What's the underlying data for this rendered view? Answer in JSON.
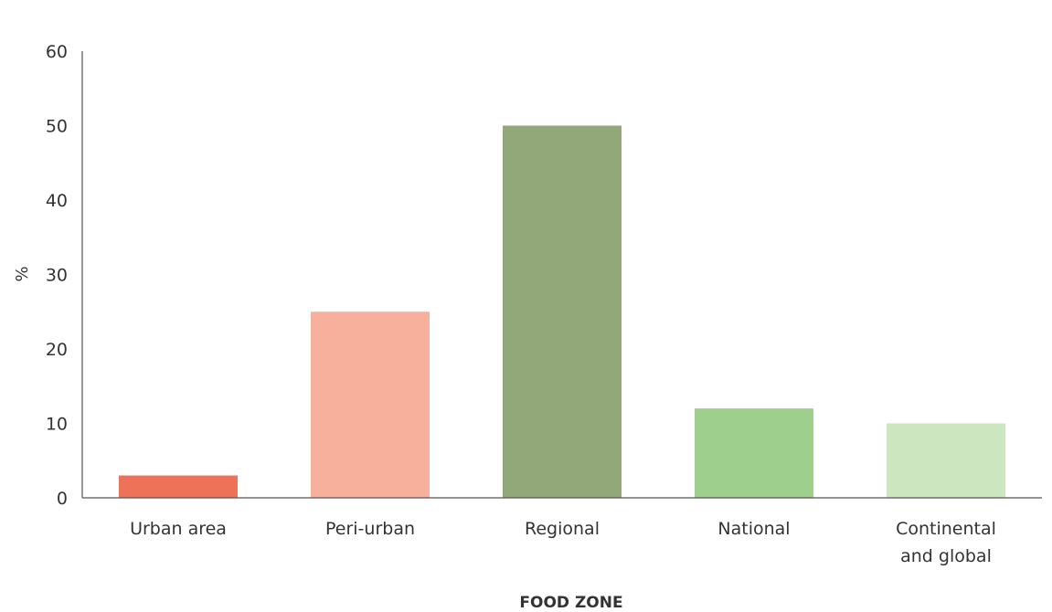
{
  "chart_data": {
    "type": "bar",
    "categories": [
      [
        "Urban area"
      ],
      [
        "Peri-urban"
      ],
      [
        "Regional"
      ],
      [
        "National"
      ],
      [
        "Continental",
        "and global"
      ]
    ],
    "values": [
      3,
      25,
      50,
      12,
      10
    ],
    "colors": [
      "#ee7258",
      "#f7b09b",
      "#93a878",
      "#9ecf8d",
      "#cce6bf"
    ],
    "title": "",
    "xlabel": "FOOD ZONE",
    "ylabel": "%",
    "ylim": [
      0,
      60
    ],
    "yticks": [
      0,
      10,
      20,
      30,
      40,
      50,
      60
    ],
    "grid": false,
    "legend": "none"
  }
}
